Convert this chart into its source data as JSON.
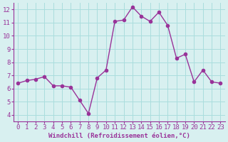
{
  "x": [
    0,
    1,
    2,
    3,
    4,
    5,
    6,
    7,
    8,
    9,
    10,
    11,
    12,
    13,
    14,
    15,
    16,
    17,
    18,
    19,
    20,
    21,
    22,
    23
  ],
  "y": [
    6.4,
    6.6,
    6.7,
    6.9,
    6.2,
    6.2,
    6.1,
    5.1,
    4.1,
    6.8,
    7.4,
    11.1,
    11.2,
    12.2,
    11.5,
    11.1,
    11.8,
    10.8,
    8.3,
    8.6,
    6.5,
    7.4,
    6.5,
    6.4
  ],
  "line_color": "#993399",
  "marker": "o",
  "marker_size": 3,
  "bg_color": "#d8f0f0",
  "grid_color": "#aadddd",
  "xlabel": "Windchill (Refroidissement éolien,°C)",
  "xlim": [
    -0.5,
    23.5
  ],
  "ylim": [
    3.5,
    12.5
  ],
  "yticks": [
    4,
    5,
    6,
    7,
    8,
    9,
    10,
    11,
    12
  ],
  "xticks": [
    0,
    1,
    2,
    3,
    4,
    5,
    6,
    7,
    8,
    9,
    10,
    11,
    12,
    13,
    14,
    15,
    16,
    17,
    18,
    19,
    20,
    21,
    22,
    23
  ],
  "label_color": "#993399",
  "tick_color": "#993399",
  "spine_color": "#993399",
  "font_size": 6.5
}
